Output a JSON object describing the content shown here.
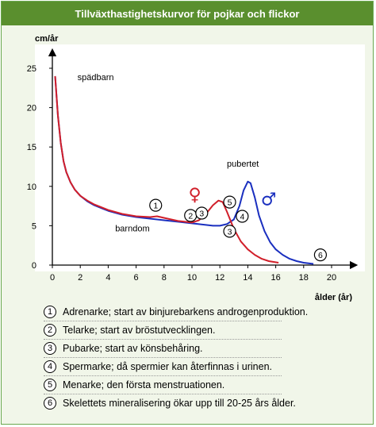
{
  "title": "Tillväxthastighetskurvor för pojkar och flickor",
  "colors": {
    "title_bg": "#5a8f2e",
    "panel_bg": "#f1f6e9",
    "boys": "#1a2fbf",
    "girls": "#d11f2a",
    "chart_bg": "#ffffff"
  },
  "chart_data": {
    "type": "line",
    "ylabel": "cm/år",
    "xlabel": "ålder (år)",
    "xlim": [
      0,
      20
    ],
    "ylim": [
      0,
      25
    ],
    "xticks": [
      "0",
      "2",
      "4",
      "6",
      "8",
      "10",
      "12",
      "14",
      "16",
      "18",
      "20"
    ],
    "yticks": [
      "0",
      "5",
      "10",
      "15",
      "20",
      "25"
    ],
    "grid": false,
    "series": [
      {
        "key": "boys",
        "color": "#1a2fbf",
        "points": [
          [
            0.2,
            24
          ],
          [
            0.4,
            19
          ],
          [
            0.6,
            15.5
          ],
          [
            0.8,
            13.2
          ],
          [
            1,
            11.8
          ],
          [
            1.3,
            10.5
          ],
          [
            1.6,
            9.6
          ],
          [
            2,
            8.8
          ],
          [
            2.5,
            8.1
          ],
          [
            3,
            7.6
          ],
          [
            4,
            6.9
          ],
          [
            5,
            6.4
          ],
          [
            6,
            6.1
          ],
          [
            7,
            5.9
          ],
          [
            8,
            5.7
          ],
          [
            9,
            5.5
          ],
          [
            10,
            5.3
          ],
          [
            10.5,
            5.2
          ],
          [
            11,
            5.1
          ],
          [
            11.5,
            5
          ],
          [
            12,
            5
          ],
          [
            12.5,
            5.2
          ],
          [
            13,
            5.8
          ],
          [
            13.4,
            7.5
          ],
          [
            13.7,
            9.5
          ],
          [
            14,
            10.6
          ],
          [
            14.2,
            10.4
          ],
          [
            14.5,
            8.6
          ],
          [
            14.8,
            6.3
          ],
          [
            15.2,
            4.3
          ],
          [
            15.6,
            2.9
          ],
          [
            16,
            2
          ],
          [
            16.5,
            1.3
          ],
          [
            17,
            0.8
          ],
          [
            17.5,
            0.5
          ],
          [
            18,
            0.3
          ],
          [
            18.7,
            0.15
          ]
        ]
      },
      {
        "key": "girls",
        "color": "#d11f2a",
        "points": [
          [
            0.2,
            24
          ],
          [
            0.4,
            19
          ],
          [
            0.6,
            15.5
          ],
          [
            0.8,
            13.2
          ],
          [
            1,
            11.8
          ],
          [
            1.3,
            10.5
          ],
          [
            1.6,
            9.6
          ],
          [
            2,
            8.8
          ],
          [
            2.5,
            8.2
          ],
          [
            3,
            7.7
          ],
          [
            4,
            7
          ],
          [
            5,
            6.5
          ],
          [
            6,
            6.2
          ],
          [
            7,
            6.1
          ],
          [
            7.5,
            6.2
          ],
          [
            8,
            6
          ],
          [
            9,
            5.6
          ],
          [
            10,
            5.4
          ],
          [
            10.5,
            5.7
          ],
          [
            11,
            6.5
          ],
          [
            11.5,
            7.6
          ],
          [
            11.9,
            8.2
          ],
          [
            12.2,
            8
          ],
          [
            12.5,
            6.8
          ],
          [
            13,
            4.6
          ],
          [
            13.5,
            3
          ],
          [
            14,
            2
          ],
          [
            14.5,
            1.3
          ],
          [
            15,
            0.8
          ],
          [
            15.5,
            0.5
          ],
          [
            16.2,
            0.3
          ]
        ]
      }
    ],
    "annotations": [
      {
        "text": "spädbarn",
        "x": 1.8,
        "y": 23.5
      },
      {
        "text": "barndom",
        "x": 4.5,
        "y": 4.3
      },
      {
        "text": "pubertet",
        "x": 12.5,
        "y": 12.5
      }
    ],
    "symbols": [
      {
        "text": "♀",
        "x": 10.2,
        "y": 8.2,
        "color": "#d11f2a"
      },
      {
        "text": "♂",
        "x": 15.5,
        "y": 7.6,
        "color": "#1a2fbf"
      }
    ],
    "markers": [
      {
        "label": "1",
        "x": 7.4,
        "y": 7.6
      },
      {
        "label": "2",
        "x": 9.9,
        "y": 6.3
      },
      {
        "label": "3",
        "x": 10.7,
        "y": 6.6
      },
      {
        "label": "5",
        "x": 12.7,
        "y": 8
      },
      {
        "label": "4",
        "x": 13.6,
        "y": 6.2
      },
      {
        "label": "3",
        "x": 12.7,
        "y": 4.3
      },
      {
        "label": "6",
        "x": 19.2,
        "y": 1.3
      }
    ]
  },
  "legend": [
    {
      "num": "1",
      "text": "Adrenarke; start av binjurebarkens androgenproduktion."
    },
    {
      "num": "2",
      "text": "Telarke; start av bröstutvecklingen."
    },
    {
      "num": "3",
      "text": "Pubarke; start av könsbehåring."
    },
    {
      "num": "4",
      "text": "Spermarke; då spermier kan återfinnas i urinen."
    },
    {
      "num": "5",
      "text": "Menarke; den första menstruationen."
    },
    {
      "num": "6",
      "text": "Skelettets mineralisering ökar upp till 20-25 års ålder."
    }
  ]
}
